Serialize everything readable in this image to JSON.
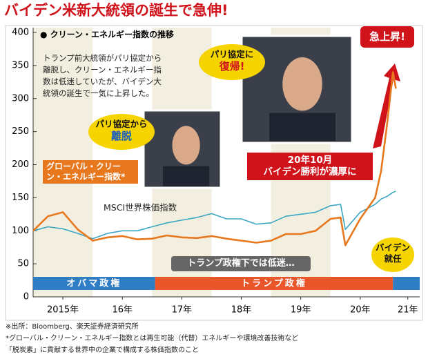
{
  "title": "バイデン米新大統領の誕生で急伸!",
  "chart_data": {
    "type": "line",
    "subtitle": "● クリーン・エネルギー指数の推移",
    "description": [
      "トランプ前大統領がパリ協定から",
      "離脱し、クリーン・エネルギー指",
      "数は低迷していたが、バイデン大",
      "統領の誕生で一気に上昇した。"
    ],
    "x": [
      2015.0,
      2015.25,
      2015.5,
      2015.75,
      2016.0,
      2016.25,
      2016.5,
      2016.75,
      2017.0,
      2017.25,
      2017.5,
      2017.75,
      2018.0,
      2018.25,
      2018.5,
      2018.75,
      2019.0,
      2019.25,
      2019.5,
      2019.75,
      2020.0,
      2020.17,
      2020.25,
      2020.5,
      2020.75,
      2020.85,
      2020.95,
      2021.0,
      2021.05,
      2021.1
    ],
    "xlim": [
      2015.0,
      2021.5
    ],
    "xticks": [
      {
        "value": 2015.5,
        "label": "2015年"
      },
      {
        "value": 2016.5,
        "label": "16年"
      },
      {
        "value": 2017.5,
        "label": "17年"
      },
      {
        "value": 2018.5,
        "label": "18年"
      },
      {
        "value": 2019.5,
        "label": "19年"
      },
      {
        "value": 2020.5,
        "label": "20年"
      },
      {
        "value": 2021.3,
        "label": "21年"
      }
    ],
    "ylim": [
      0,
      400
    ],
    "yticks": [
      0,
      50,
      100,
      150,
      200,
      250,
      300,
      350,
      400
    ],
    "series": [
      {
        "name": "グローバル・クリーン・エネルギー指数*",
        "color": "#e8781e",
        "values": [
          100,
          122,
          128,
          102,
          85,
          90,
          92,
          87,
          88,
          93,
          90,
          89,
          92,
          88,
          85,
          82,
          85,
          95,
          95,
          100,
          118,
          120,
          78,
          118,
          150,
          190,
          260,
          300,
          340,
          315
        ]
      },
      {
        "name": "MSCI世界株価指数",
        "color": "#3aa6c4",
        "values": [
          100,
          106,
          103,
          96,
          88,
          96,
          100,
          100,
          106,
          112,
          116,
          120,
          126,
          118,
          118,
          110,
          112,
          122,
          125,
          128,
          138,
          140,
          102,
          128,
          140,
          148,
          152,
          155,
          158,
          160
        ]
      }
    ],
    "periods": [
      {
        "label": "オバマ政権",
        "start": 2015.0,
        "end": 2017.05,
        "color": "#2f7dc4"
      },
      {
        "label": "トランプ政権",
        "start": 2017.05,
        "end": 2021.05,
        "color": "#e8562a"
      },
      {
        "label": null,
        "start": 2021.05,
        "end": 2021.5,
        "color": "#2f7dc4"
      }
    ],
    "annotations": [
      {
        "lines": [
          "20年10月",
          "バイデン勝利が濃厚に"
        ]
      },
      {
        "lines": [
          "急上昇!"
        ]
      },
      {
        "lines": [
          "トランプ政権下では低迷…"
        ]
      },
      {
        "lines": [
          "バイデン",
          "就任"
        ]
      },
      {
        "lines": [
          "パリ協定から",
          "離脱"
        ]
      },
      {
        "lines": [
          "パリ協定に",
          "復帰!"
        ]
      }
    ]
  },
  "footnotes": [
    "※出所：Bloomberg、楽天証券経済研究所",
    "*グローバル・クリーン・エネルギー指数とは再生可能（代替）エネルギーや環境改善技術など",
    "「脱炭素」に貢献する世界中の企業で構成する株価指数のこと"
  ]
}
